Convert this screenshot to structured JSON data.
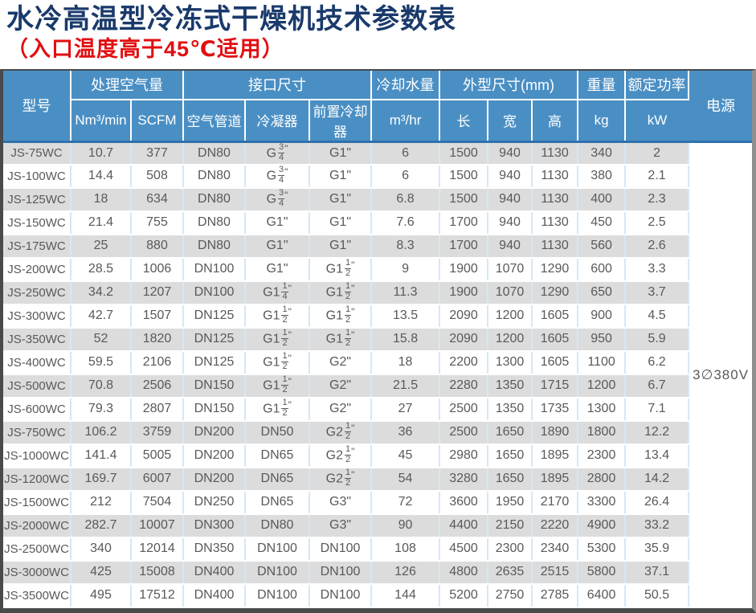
{
  "page": {
    "title": "水冷高温型冷冻式干燥机技术参数表",
    "subtitle": "（入口温度高于45℃适用）"
  },
  "colors": {
    "title_navy": "#1a3a6b",
    "subtitle_red": "#e10f12",
    "header_blue": "#4a8fc4",
    "header_edge": "#2f72ab",
    "header_text": "#ffffff",
    "stripe_gray": "#dcdcdc",
    "cell_border": "#d5e8f6",
    "body_text": "#595959",
    "frame_dark": "#4a4a4a",
    "frame_light": "#8f8f8f"
  },
  "table": {
    "headers": {
      "model": "型号",
      "air_volume_group": "处理空气量",
      "air_volume_unit1": "Nm³/min",
      "air_volume_unit2": "SCFM",
      "interface_group": "接口尺寸",
      "interface_col1": "空气管道",
      "interface_col2": "冷凝器",
      "interface_col3": "前置冷却器",
      "cooling_water_group": "冷却水量",
      "cooling_water_unit": "m³/hr",
      "dimensions_group": "外型尺寸(mm)",
      "dim_length": "长",
      "dim_width": "宽",
      "dim_height": "高",
      "weight_group": "重量",
      "weight_unit": "kg",
      "rated_power_group": "额定功率",
      "rated_power_unit": "kW",
      "supply_group": "电源"
    },
    "power_supply": "3∅380V",
    "columns": [
      "model",
      "nm3_min",
      "scfm",
      "air-pipe",
      "condenser",
      "precooler",
      "m3_hr",
      "length",
      "width",
      "height",
      "weight-kg",
      "power-kw"
    ],
    "rows": [
      [
        "JS-75WC",
        "10.7",
        "377",
        "DN80",
        "G{3/4}\"",
        "G1\"",
        "6",
        "1500",
        "940",
        "1130",
        "340",
        "2"
      ],
      [
        "JS-100WC",
        "14.4",
        "508",
        "DN80",
        "G{3/4}\"",
        "G1\"",
        "6",
        "1500",
        "940",
        "1130",
        "380",
        "2.1"
      ],
      [
        "JS-125WC",
        "18",
        "634",
        "DN80",
        "G{3/4}\"",
        "G1\"",
        "6.8",
        "1500",
        "940",
        "1130",
        "400",
        "2.3"
      ],
      [
        "JS-150WC",
        "21.4",
        "755",
        "DN80",
        "G1\"",
        "G1\"",
        "7.6",
        "1700",
        "940",
        "1130",
        "450",
        "2.5"
      ],
      [
        "JS-175WC",
        "25",
        "880",
        "DN80",
        "G1\"",
        "G1\"",
        "8.3",
        "1700",
        "940",
        "1130",
        "560",
        "2.6"
      ],
      [
        "JS-200WC",
        "28.5",
        "1006",
        "DN100",
        "G1\"",
        "G1{1/2}\"",
        "9",
        "1900",
        "1070",
        "1290",
        "600",
        "3.3"
      ],
      [
        "JS-250WC",
        "34.2",
        "1207",
        "DN100",
        "G1{1/4}\"",
        "G1{1/2}\"",
        "11.3",
        "1900",
        "1070",
        "1290",
        "650",
        "3.7"
      ],
      [
        "JS-300WC",
        "42.7",
        "1507",
        "DN125",
        "G1{1/2}\"",
        "G1{1/2}\"",
        "13.5",
        "2090",
        "1200",
        "1605",
        "900",
        "4.5"
      ],
      [
        "JS-350WC",
        "52",
        "1820",
        "DN125",
        "G1{1/2}\"",
        "G1{1/2}\"",
        "15.8",
        "2090",
        "1200",
        "1605",
        "950",
        "5.9"
      ],
      [
        "JS-400WC",
        "59.5",
        "2106",
        "DN125",
        "G1{1/2}\"",
        "G2\"",
        "18",
        "2200",
        "1300",
        "1605",
        "1100",
        "6.2"
      ],
      [
        "JS-500WC",
        "70.8",
        "2506",
        "DN150",
        "G1{1/2}\"",
        "G2\"",
        "21.5",
        "2280",
        "1350",
        "1715",
        "1200",
        "6.7"
      ],
      [
        "JS-600WC",
        "79.3",
        "2807",
        "DN150",
        "G1{1/2}\"",
        "G2\"",
        "27",
        "2500",
        "1350",
        "1735",
        "1300",
        "7.1"
      ],
      [
        "JS-750WC",
        "106.2",
        "3759",
        "DN200",
        "DN50",
        "G2{1/2}\"",
        "36",
        "2500",
        "1650",
        "1890",
        "1800",
        "12.2"
      ],
      [
        "JS-1000WC",
        "141.4",
        "5005",
        "DN200",
        "DN65",
        "G2{1/2}\"",
        "45",
        "2980",
        "1650",
        "1895",
        "2300",
        "13.4"
      ],
      [
        "JS-1200WC",
        "169.7",
        "6007",
        "DN200",
        "DN65",
        "G2{1/2}\"",
        "54",
        "3280",
        "1650",
        "1895",
        "2800",
        "14.2"
      ],
      [
        "JS-1500WC",
        "212",
        "7504",
        "DN250",
        "DN65",
        "G3\"",
        "72",
        "3600",
        "1950",
        "2170",
        "3300",
        "26.4"
      ],
      [
        "JS-2000WC",
        "282.7",
        "10007",
        "DN300",
        "DN80",
        "G3\"",
        "90",
        "4400",
        "2150",
        "2220",
        "4900",
        "33.2"
      ],
      [
        "JS-2500WC",
        "340",
        "12014",
        "DN350",
        "DN100",
        "DN100",
        "108",
        "4500",
        "2300",
        "2340",
        "5300",
        "35.9"
      ],
      [
        "JS-3000WC",
        "425",
        "15008",
        "DN400",
        "DN100",
        "DN100",
        "126",
        "4800",
        "2635",
        "2515",
        "5800",
        "37.1"
      ],
      [
        "JS-3500WC",
        "495",
        "17512",
        "DN400",
        "DN100",
        "DN100",
        "144",
        "5200",
        "2750",
        "2785",
        "6400",
        "50.5"
      ]
    ]
  }
}
